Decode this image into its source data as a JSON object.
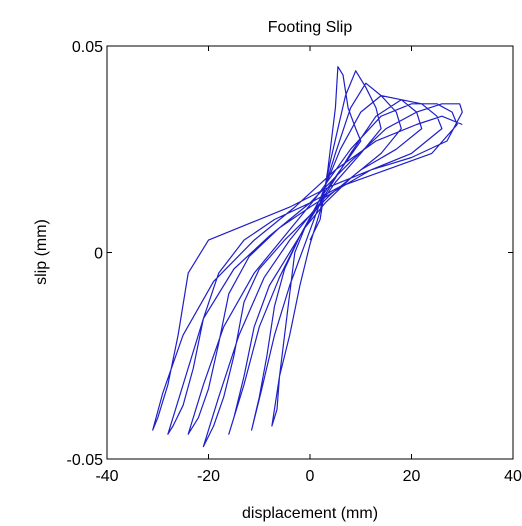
{
  "chart_data": {
    "type": "line",
    "title": "Footing Slip",
    "xlabel": "displacement (mm)",
    "ylabel": "slip (mm)",
    "xlim": [
      -40,
      40
    ],
    "ylim": [
      -0.05,
      0.05
    ],
    "x_ticks": [
      -40,
      -20,
      0,
      20,
      40
    ],
    "x_tick_labels": [
      "-40",
      "-20",
      "0",
      "20",
      "40"
    ],
    "y_ticks": [
      -0.05,
      0,
      0.05
    ],
    "y_tick_labels": [
      "-0.05",
      "0",
      "0.05"
    ],
    "grid": false,
    "series": [
      {
        "color": "#1f1fc8",
        "points": [
          [
            0,
            0.003
          ],
          [
            2,
            0.008
          ],
          [
            3.5,
            0.02
          ],
          [
            5,
            0.035
          ],
          [
            5.5,
            0.045
          ],
          [
            6.5,
            0.043
          ],
          [
            7.5,
            0.035
          ],
          [
            9,
            0.03
          ],
          [
            10,
            0.027
          ],
          [
            6,
            0.02
          ],
          [
            2,
            0.013
          ],
          [
            -1,
            0.006
          ],
          [
            -3,
            0.0
          ],
          [
            -4,
            -0.01
          ],
          [
            -5,
            -0.02
          ],
          [
            -6,
            -0.03
          ],
          [
            -6.5,
            -0.038
          ],
          [
            -7.5,
            -0.042
          ],
          [
            -6,
            -0.03
          ],
          [
            -4,
            -0.02
          ],
          [
            -2,
            -0.008
          ],
          [
            0,
            0.002
          ],
          [
            2,
            0.01
          ],
          [
            4,
            0.022
          ],
          [
            7,
            0.038
          ],
          [
            9,
            0.044
          ],
          [
            11,
            0.04
          ],
          [
            13,
            0.035
          ],
          [
            14,
            0.03
          ],
          [
            10,
            0.024
          ],
          [
            5,
            0.017
          ],
          [
            1,
            0.01
          ],
          [
            -2,
            0.004
          ],
          [
            -5,
            -0.004
          ],
          [
            -7,
            -0.013
          ],
          [
            -8.5,
            -0.025
          ],
          [
            -10,
            -0.035
          ],
          [
            -11.5,
            -0.043
          ],
          [
            -9.5,
            -0.033
          ],
          [
            -7,
            -0.02
          ],
          [
            -4,
            -0.008
          ],
          [
            -1,
            0.002
          ],
          [
            2,
            0.012
          ],
          [
            5,
            0.024
          ],
          [
            8,
            0.035
          ],
          [
            11,
            0.041
          ],
          [
            14,
            0.038
          ],
          [
            17,
            0.034
          ],
          [
            18,
            0.03
          ],
          [
            14,
            0.024
          ],
          [
            8,
            0.018
          ],
          [
            3,
            0.012
          ],
          [
            -1,
            0.006
          ],
          [
            -4,
            0.0
          ],
          [
            -8,
            -0.008
          ],
          [
            -11,
            -0.018
          ],
          [
            -13,
            -0.03
          ],
          [
            -15,
            -0.04
          ],
          [
            -16,
            -0.044
          ],
          [
            -13,
            -0.032
          ],
          [
            -10,
            -0.018
          ],
          [
            -6,
            -0.006
          ],
          [
            -2,
            0.004
          ],
          [
            2,
            0.013
          ],
          [
            6,
            0.025
          ],
          [
            10,
            0.034
          ],
          [
            14,
            0.038
          ],
          [
            18,
            0.037
          ],
          [
            21,
            0.034
          ],
          [
            22,
            0.03
          ],
          [
            17,
            0.025
          ],
          [
            10,
            0.02
          ],
          [
            4,
            0.014
          ],
          [
            0,
            0.009
          ],
          [
            -5,
            0.003
          ],
          [
            -10,
            -0.004
          ],
          [
            -13,
            -0.012
          ],
          [
            -15,
            -0.025
          ],
          [
            -17,
            -0.035
          ],
          [
            -19,
            -0.042
          ],
          [
            -21,
            -0.047
          ],
          [
            -18,
            -0.035
          ],
          [
            -14,
            -0.02
          ],
          [
            -9,
            -0.006
          ],
          [
            -4,
            0.003
          ],
          [
            2,
            0.012
          ],
          [
            8,
            0.024
          ],
          [
            13,
            0.033
          ],
          [
            18,
            0.037
          ],
          [
            22,
            0.036
          ],
          [
            25,
            0.033
          ],
          [
            26,
            0.03
          ],
          [
            20,
            0.024
          ],
          [
            12,
            0.02
          ],
          [
            5,
            0.015
          ],
          [
            0,
            0.011
          ],
          [
            -6,
            0.006
          ],
          [
            -12,
            -0.001
          ],
          [
            -16,
            -0.01
          ],
          [
            -18,
            -0.022
          ],
          [
            -20,
            -0.033
          ],
          [
            -22,
            -0.04
          ],
          [
            -24,
            -0.044
          ],
          [
            -21,
            -0.032
          ],
          [
            -17,
            -0.018
          ],
          [
            -11,
            -0.005
          ],
          [
            -5,
            0.004
          ],
          [
            1,
            0.013
          ],
          [
            8,
            0.025
          ],
          [
            14,
            0.033
          ],
          [
            20,
            0.036
          ],
          [
            25,
            0.036
          ],
          [
            28,
            0.034
          ],
          [
            29,
            0.031
          ],
          [
            24,
            0.024
          ],
          [
            15,
            0.02
          ],
          [
            6,
            0.016
          ],
          [
            0,
            0.012
          ],
          [
            -7,
            0.008
          ],
          [
            -13,
            0.003
          ],
          [
            -18,
            -0.005
          ],
          [
            -21,
            -0.016
          ],
          [
            -23,
            -0.028
          ],
          [
            -25,
            -0.037
          ],
          [
            -27,
            -0.042
          ],
          [
            -28,
            -0.044
          ],
          [
            -25,
            -0.032
          ],
          [
            -21,
            -0.016
          ],
          [
            -15,
            -0.004
          ],
          [
            -8,
            0.004
          ],
          [
            0,
            0.012
          ],
          [
            8,
            0.022
          ],
          [
            15,
            0.03
          ],
          [
            21,
            0.034
          ],
          [
            26,
            0.036
          ],
          [
            29.5,
            0.036
          ],
          [
            30,
            0.034
          ],
          [
            27,
            0.027
          ],
          [
            20,
            0.023
          ],
          [
            12,
            0.02
          ],
          [
            4,
            0.016
          ],
          [
            -4,
            0.011
          ],
          [
            -12,
            0.007
          ],
          [
            -20,
            0.003
          ],
          [
            -24,
            -0.005
          ],
          [
            -26,
            -0.02
          ],
          [
            -28,
            -0.032
          ],
          [
            -30,
            -0.04
          ],
          [
            -31,
            -0.043
          ],
          [
            -29,
            -0.034
          ],
          [
            -25,
            -0.02
          ],
          [
            -19,
            -0.007
          ],
          [
            -11,
            0.003
          ],
          [
            -3,
            0.011
          ],
          [
            5,
            0.02
          ],
          [
            13,
            0.027
          ],
          [
            21,
            0.031
          ],
          [
            26,
            0.033
          ],
          [
            30,
            0.031
          ]
        ]
      }
    ]
  }
}
